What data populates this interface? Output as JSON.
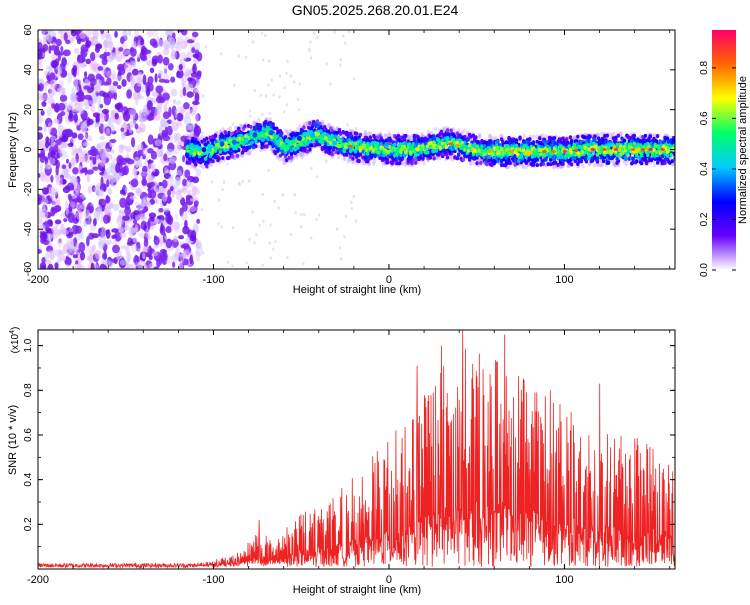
{
  "title": "GN05.2025.268.20.01.E24",
  "chart_data": [
    {
      "type": "heatmap",
      "xlabel": "Height of straight line (km)",
      "ylabel": "Frequency (Hz)",
      "xlim": [
        -200,
        163
      ],
      "ylim": [
        -60,
        60
      ],
      "xticks": [
        -200,
        -100,
        0,
        100
      ],
      "yticks": [
        60,
        40,
        20,
        0,
        -20,
        -40,
        -60
      ],
      "grid": false,
      "colorbar": {
        "label": "Normalized spectral amplitude",
        "range": [
          0.0,
          0.95
        ],
        "ticks": [
          "0.0",
          "0.2",
          "0.4",
          "0.6",
          "0.8"
        ],
        "colors": [
          "#ffffff",
          "#6600ff",
          "#0000ff",
          "#00ccff",
          "#00ff66",
          "#ffff00",
          "#ff6600",
          "#ff0066"
        ]
      },
      "ridge": {
        "start_km": -115,
        "points": [
          [
            -115,
            0
          ],
          [
            -105,
            -2
          ],
          [
            -95,
            2
          ],
          [
            -85,
            4
          ],
          [
            -75,
            7
          ],
          [
            -68,
            8
          ],
          [
            -60,
            1
          ],
          [
            -50,
            4
          ],
          [
            -42,
            8
          ],
          [
            -35,
            5
          ],
          [
            -25,
            2
          ],
          [
            -15,
            1
          ],
          [
            -5,
            0
          ],
          [
            5,
            0
          ],
          [
            15,
            0
          ],
          [
            25,
            2
          ],
          [
            35,
            3
          ],
          [
            45,
            1
          ],
          [
            55,
            -1
          ],
          [
            70,
            -1
          ],
          [
            85,
            -1
          ],
          [
            100,
            -1
          ],
          [
            115,
            0
          ],
          [
            130,
            0
          ],
          [
            145,
            0
          ],
          [
            163,
            0
          ]
        ]
      },
      "noise_region_end_km": -108
    },
    {
      "type": "line",
      "xlabel": "Height of straight line (km)",
      "ylabel": "SNR (10 * v/v)",
      "multiplier_label": "(x10",
      "multiplier_exponent": "4",
      "xlim": [
        -200,
        163
      ],
      "ylim": [
        0,
        1.07
      ],
      "xticks": [
        -200,
        -100,
        0,
        100
      ],
      "yticks": [
        "0.2",
        "0.4",
        "0.6",
        "0.8",
        "1.0"
      ],
      "grid": false,
      "series": [
        {
          "color": "#ee2222",
          "envelope": [
            [
              -200,
              0.02
            ],
            [
              -120,
              0.02
            ],
            [
              -100,
              0.04
            ],
            [
              -85,
              0.08
            ],
            [
              -75,
              0.18
            ],
            [
              -65,
              0.12
            ],
            [
              -55,
              0.22
            ],
            [
              -45,
              0.28
            ],
            [
              -35,
              0.3
            ],
            [
              -25,
              0.38
            ],
            [
              -15,
              0.45
            ],
            [
              -5,
              0.55
            ],
            [
              5,
              0.6
            ],
            [
              15,
              0.7
            ],
            [
              25,
              0.88
            ],
            [
              35,
              0.95
            ],
            [
              45,
              1.0
            ],
            [
              55,
              0.95
            ],
            [
              65,
              0.98
            ],
            [
              75,
              0.9
            ],
            [
              85,
              0.82
            ],
            [
              95,
              0.78
            ],
            [
              105,
              0.72
            ],
            [
              115,
              0.68
            ],
            [
              125,
              0.62
            ],
            [
              135,
              0.6
            ],
            [
              145,
              0.58
            ],
            [
              155,
              0.55
            ],
            [
              163,
              0.5
            ]
          ],
          "peaks": [
            [
              42,
              1.07
            ],
            [
              66,
              1.05
            ],
            [
              16,
              0.91
            ],
            [
              92,
              0.8
            ],
            [
              120,
              0.83
            ],
            [
              -74,
              0.22
            ],
            [
              4,
              0.62
            ],
            [
              30,
              1.0
            ]
          ]
        }
      ]
    }
  ]
}
